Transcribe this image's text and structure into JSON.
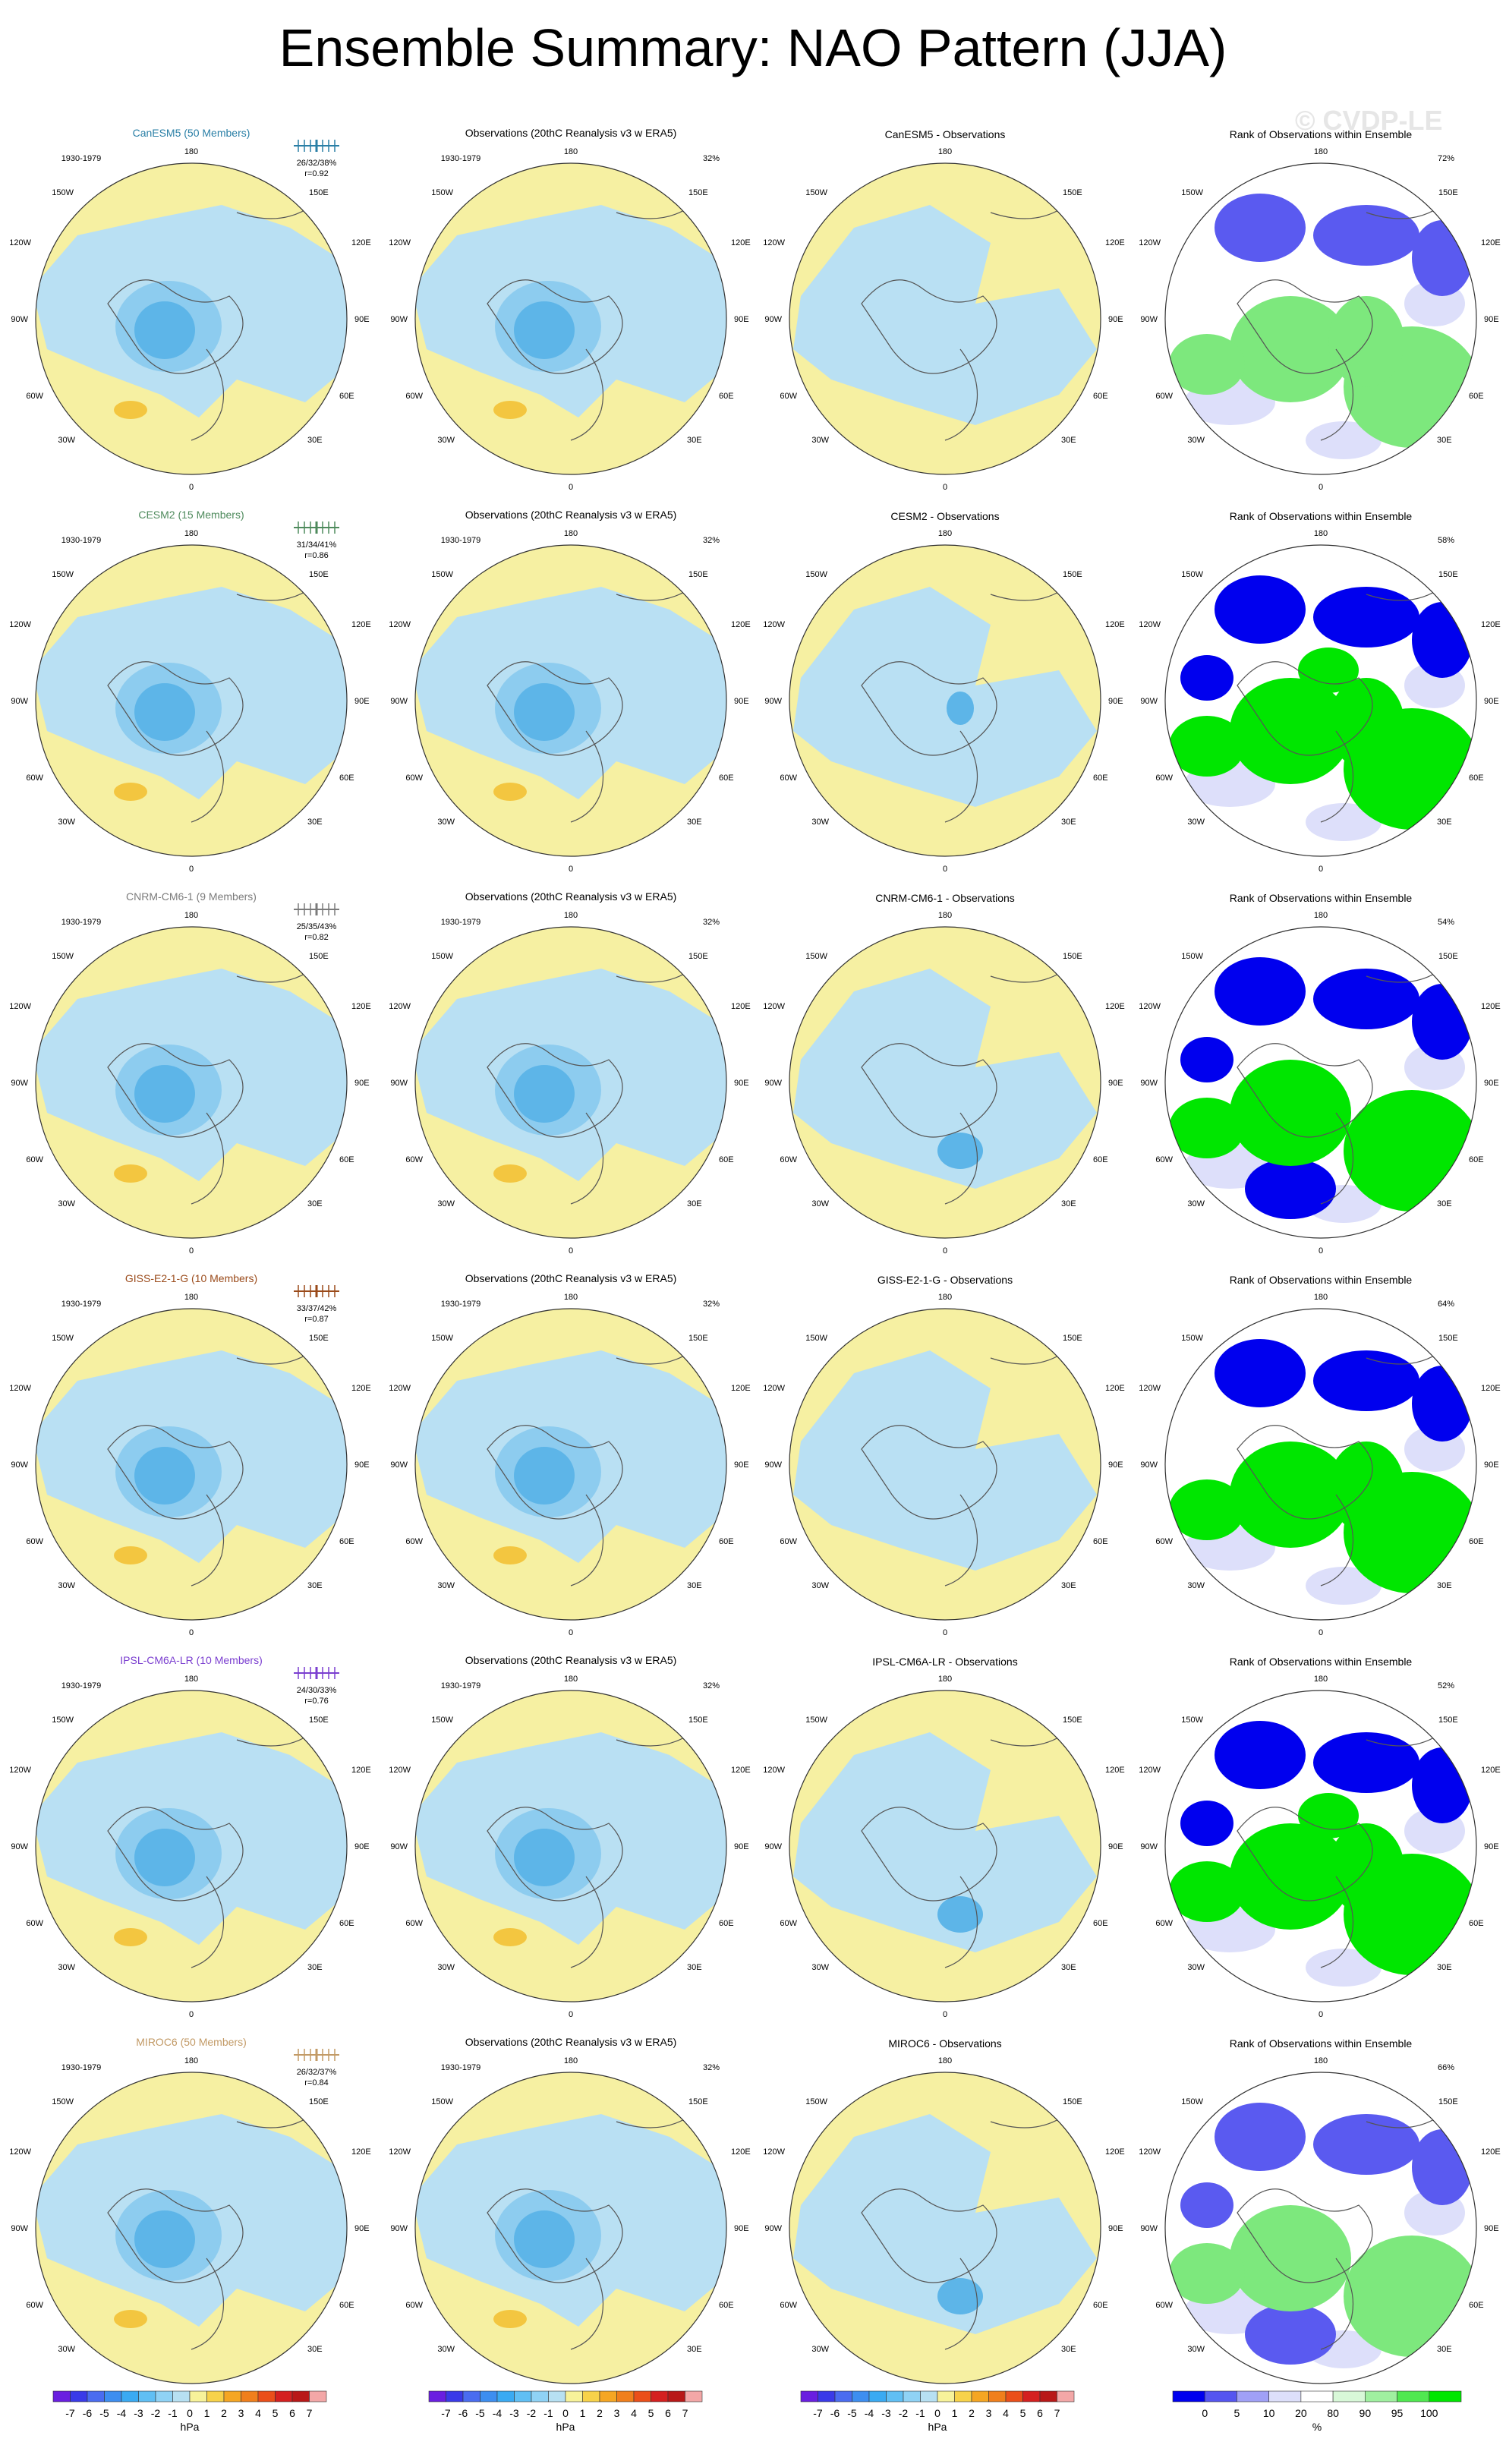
{
  "page": {
    "title": "Ensemble Summary: NAO Pattern (JJA)",
    "watermark": "© CVDP-LE"
  },
  "map_labels": {
    "lon_labels": [
      "180",
      "150W",
      "150E",
      "120W",
      "120E",
      "90W",
      "90E",
      "60W",
      "60E",
      "30W",
      "30E",
      "0"
    ],
    "period": "1930-1979"
  },
  "obs_title": "Observations (20thC Reanalysis v3 w ERA5)",
  "rank_title": "Rank of Observations within Ensemble",
  "rows": [
    {
      "model_title": "CanESM5 (50 Members)",
      "color": "#2a7fa6",
      "stats": "26/32/38%",
      "r": "r=0.92",
      "obs_pct": "32%",
      "diff_title": "CanESM5 - Observations",
      "rank_pct": "72%"
    },
    {
      "model_title": "CESM2 (15 Members)",
      "color": "#4e8a5c",
      "stats": "31/34/41%",
      "r": "r=0.86",
      "obs_pct": "32%",
      "diff_title": "CESM2 - Observations",
      "rank_pct": "58%"
    },
    {
      "model_title": "CNRM-CM6-1 (9 Members)",
      "color": "#7b7b7b",
      "stats": "25/35/43%",
      "r": "r=0.82",
      "obs_pct": "32%",
      "diff_title": "CNRM-CM6-1 - Observations",
      "rank_pct": "54%"
    },
    {
      "model_title": "GISS-E2-1-G (10 Members)",
      "color": "#9a4a1a",
      "stats": "33/37/42%",
      "r": "r=0.87",
      "obs_pct": "32%",
      "diff_title": "GISS-E2-1-G - Observations",
      "rank_pct": "64%"
    },
    {
      "model_title": "IPSL-CM6A-LR (10 Members)",
      "color": "#7b3fd0",
      "stats": "24/30/33%",
      "r": "r=0.76",
      "obs_pct": "32%",
      "diff_title": "IPSL-CM6A-LR - Observations",
      "rank_pct": "52%"
    },
    {
      "model_title": "MIROC6 (50 Members)",
      "color": "#c29a66",
      "stats": "26/32/37%",
      "r": "r=0.84",
      "obs_pct": "32%",
      "diff_title": "MIROC6 - Observations",
      "rank_pct": "66%"
    }
  ],
  "colorbars": {
    "hpa_labels": [
      "-7",
      "-6",
      "-5",
      "-4",
      "-3",
      "-2",
      "-1",
      "0",
      "1",
      "2",
      "3",
      "4",
      "5",
      "6",
      "7"
    ],
    "hpa_colors": [
      "#6a1fe0",
      "#3a3ae8",
      "#4a6cf0",
      "#3d8ef0",
      "#3aaaf2",
      "#60bff4",
      "#8fd2f5",
      "#b7e0f2",
      "#f7f29a",
      "#f7d24a",
      "#f5a623",
      "#f07f1c",
      "#ea4f1a",
      "#d42020",
      "#b81818",
      "#f3a7a7"
    ],
    "hpa_unit": "hPa",
    "pct_labels": [
      "0",
      "5",
      "10",
      "20",
      "80",
      "90",
      "95",
      "100"
    ],
    "pct_colors": [
      "#0000ee",
      "#5555f0",
      "#a0a0f6",
      "#dddffa",
      "#ffffff",
      "#d8f8d8",
      "#a0f0a0",
      "#50e850",
      "#00e600"
    ],
    "pct_unit": "%"
  }
}
